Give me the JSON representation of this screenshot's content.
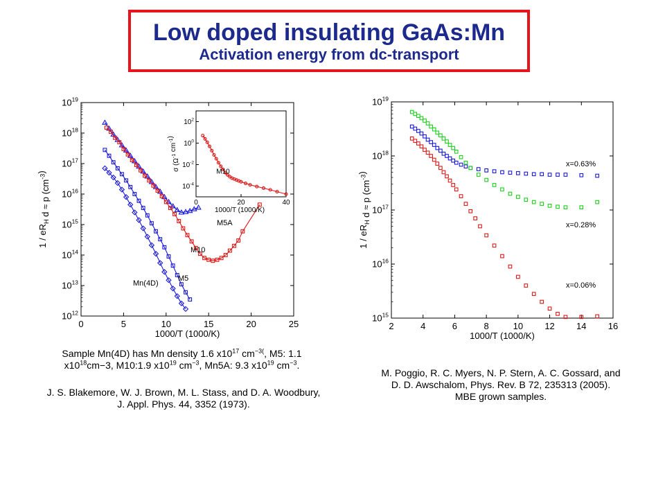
{
  "slide": {
    "title": "Low doped insulating GaAs:Mn",
    "subtitle": "Activation energy from dc-transport"
  },
  "captions": {
    "left_density": {
      "p1": "Sample Mn(4D) has Mn density 1.6 x10",
      "e1": "17",
      "p2": " cm",
      "e2": "−3(",
      "p3": ", M5: 1.1 x10",
      "e3": "18",
      "p4": "cm−3, M10:1.9 x10",
      "e4": "19",
      "p5": " cm",
      "e5": "−3",
      "p6": ", Mn5A: 9.3 x10",
      "e6": "19",
      "p7": " cm",
      "e7": "−3",
      "p8": "."
    },
    "left_ref": "J. S. Blakemore, W. J. Brown, M. L. Stass, and D. A. Woodbury, J. Appl. Phys. 44, 3352 (1973).",
    "right_ref": "M. Poggio, R. C. Myers, N. P. Stern, A. C. Gossard, and D. D. Awschalom, Phys. Rev. B 72, 235313 (2005). MBE grown samples."
  },
  "chart_data": [
    {
      "type": "line",
      "xlabel": "1000/T    (1000/K)",
      "ylabel": "1 / eR_H d ≈ p    (cm^-3)",
      "xlim": [
        0,
        25
      ],
      "ylim": [
        1000000000000.0,
        1e+19
      ],
      "yscale": "log",
      "xticks": [
        "0",
        "5",
        "10",
        "15",
        "20",
        "25"
      ],
      "yticks": [
        "10^12",
        "10^13",
        "10^14",
        "10^15",
        "10^16",
        "10^17",
        "10^18",
        "10^19"
      ],
      "series": [
        {
          "name": "M5A",
          "color": "#1a1adc",
          "marker": "triangle",
          "x": [
            2.8,
            3.3,
            3.8,
            4.3,
            4.8,
            5.3,
            5.8,
            6.3,
            6.8,
            7.3,
            7.8,
            8.3,
            8.8,
            9.3,
            9.8,
            10.3,
            10.8,
            11.3,
            11.8,
            12.3,
            12.8,
            13.3,
            13.8
          ],
          "y": [
            2.2e+18,
            1.4e+18,
            9e+17,
            6e+17,
            4e+17,
            2.7e+17,
            1.8e+17,
            1.2e+17,
            8e+16,
            5.5e+16,
            3.8e+16,
            2.5e+16,
            1.7e+16,
            1.2e+16,
            8000000000000000.0,
            5500000000000000.0,
            4000000000000000.0,
            3000000000000000.0,
            2500000000000000.0,
            2600000000000000.0,
            2800000000000000.0,
            3200000000000000.0,
            3600000000000000.0
          ]
        },
        {
          "name": "M10",
          "color": "#e01818",
          "marker": "square",
          "x": [
            3.0,
            3.5,
            4.0,
            4.5,
            5.0,
            5.5,
            6.0,
            6.5,
            7.0,
            7.5,
            8.0,
            8.5,
            9.0,
            9.5,
            10.0,
            10.5,
            11.0,
            11.5,
            12.0,
            12.5,
            13.0,
            13.5,
            14.0,
            14.5,
            15.0,
            15.5,
            16.0,
            16.5,
            17.0,
            17.5,
            18.0,
            18.5,
            19.0,
            21.0
          ],
          "y": [
            1.5e+18,
            1.1e+18,
            7e+17,
            5e+17,
            3e+17,
            2e+17,
            1.3e+17,
            9e+16,
            6e+16,
            4e+16,
            2.8e+16,
            1.9e+16,
            1.3e+16,
            8500000000000000.0,
            5500000000000000.0,
            3500000000000000.0,
            2200000000000000.0,
            1300000000000000.0,
            750000000000000.0,
            450000000000000.0,
            280000000000000.0,
            170000000000000.0,
            110000000000000.0,
            80000000000000.0,
            70000000000000.0,
            65000000000000.0,
            70000000000000.0,
            80000000000000.0,
            100000000000000.0,
            140000000000000.0,
            200000000000000.0,
            300000000000000.0,
            600000000000000.0,
            4500000000000000.0
          ]
        },
        {
          "name": "M5",
          "color": "#1a1adc",
          "marker": "square",
          "x": [
            2.8,
            3.3,
            3.8,
            4.3,
            4.8,
            5.3,
            5.8,
            6.3,
            6.8,
            7.3,
            7.8,
            8.3,
            8.8,
            9.3,
            9.8,
            10.3,
            10.8,
            11.3,
            11.8,
            12.3,
            12.8
          ],
          "y": [
            2.8e+17,
            1.8e+17,
            1.1e+17,
            7e+16,
            4.5e+16,
            2.8e+16,
            1.7e+16,
            1e+16,
            6000000000000000.0,
            3500000000000000.0,
            2000000000000000.0,
            1100000000000000.0,
            600000000000000.0,
            330000000000000.0,
            180000000000000.0,
            90000000000000.0,
            45000000000000.0,
            22000000000000.0,
            11000000000000.0,
            6000000000000.0,
            3500000000000.0
          ]
        },
        {
          "name": "Mn(4D)",
          "color": "#1a1adc",
          "marker": "diamond",
          "x": [
            2.8,
            3.3,
            3.8,
            4.3,
            4.8,
            5.3,
            5.8,
            6.3,
            6.8,
            7.3,
            7.8,
            8.3,
            8.8,
            9.3,
            9.8,
            10.3,
            10.8,
            11.3,
            11.8,
            12.3
          ],
          "y": [
            7e+16,
            5e+16,
            3.5e+16,
            2.3e+16,
            1.4e+16,
            8000000000000000.0,
            4500000000000000.0,
            2500000000000000.0,
            1400000000000000.0,
            750000000000000.0,
            400000000000000.0,
            210000000000000.0,
            110000000000000.0,
            55000000000000.0,
            28000000000000.0,
            15000000000000.0,
            8000000000000.0,
            4500000000000.0,
            2600000000000.0,
            1700000000000.0
          ]
        }
      ],
      "inset": {
        "type": "line",
        "xlabel": "1000/T    (1000/K)",
        "ylabel": "σ (Ω^-1 cm^-1)",
        "xlim": [
          0,
          40
        ],
        "ylim": [
          1e-05,
          1000.0
        ],
        "yscale": "log",
        "xticks": [
          "0",
          "20",
          "40"
        ],
        "yticks": [
          "10^-4",
          "10^-2",
          "10^0",
          "10^2"
        ],
        "series": [
          {
            "name": "M10",
            "color": "#e01818",
            "marker": "circle",
            "x": [
              3,
              4,
              5,
              6,
              7,
              8,
              9,
              10,
              11,
              12,
              13,
              14,
              15,
              16,
              17,
              18,
              19,
              20,
              22,
              24,
              27,
              30,
              33,
              36,
              40
            ],
            "y": [
              5,
              2.5,
              1.2,
              0.5,
              0.2,
              0.08,
              0.035,
              0.015,
              0.007,
              0.0035,
              0.0018,
              0.0011,
              0.00075,
              0.00055,
              0.00045,
              0.00037,
              0.0003,
              0.00025,
              0.00018,
              0.00013,
              9e-05,
              6.5e-05,
              4.5e-05,
              3e-05,
              1.8e-05
            ]
          }
        ]
      }
    },
    {
      "type": "scatter",
      "xlabel": "1000/T    (1000/K)",
      "ylabel": "1 / eR_H d ≈ p    (cm^-3)",
      "xlim": [
        2,
        16
      ],
      "ylim": [
        1000000000000000.0,
        1e+19
      ],
      "yscale": "log",
      "xticks": [
        "2",
        "4",
        "6",
        "8",
        "10",
        "12",
        "14",
        "16"
      ],
      "yticks": [
        "10^15",
        "10^16",
        "10^17",
        "10^18",
        "10^19"
      ],
      "series": [
        {
          "name": "x=0.63%",
          "color": "#1a1adc",
          "marker": "square",
          "x": [
            3.3,
            3.5,
            3.7,
            3.9,
            4.1,
            4.3,
            4.5,
            4.7,
            4.9,
            5.1,
            5.3,
            5.5,
            5.7,
            5.9,
            6.1,
            6.4,
            6.7,
            7.0,
            7.5,
            8.0,
            8.5,
            9.0,
            9.5,
            10.0,
            10.5,
            11.0,
            11.5,
            12.0,
            12.5,
            13.0,
            14.0,
            15.0
          ],
          "y": [
            3.5e+18,
            3.2e+18,
            2.9e+18,
            2.6e+18,
            2.3e+18,
            2e+18,
            1.8e+18,
            1.6e+18,
            1.4e+18,
            1.25e+18,
            1.1e+18,
            1e+18,
            9e+17,
            8.2e+17,
            7.5e+17,
            6.9e+17,
            6.4e+17,
            6e+17,
            5.7e+17,
            5.4e+17,
            5.2e+17,
            5e+17,
            4.9e+17,
            4.8e+17,
            4.7e+17,
            4.6e+17,
            4.6e+17,
            4.5e+17,
            4.5e+17,
            4.5e+17,
            4.4e+17,
            4.3e+17
          ]
        },
        {
          "name": "x=0.28%",
          "color": "#1ad21a",
          "marker": "square",
          "x": [
            3.3,
            3.5,
            3.7,
            3.9,
            4.1,
            4.3,
            4.5,
            4.7,
            4.9,
            5.1,
            5.3,
            5.5,
            5.7,
            5.9,
            6.1,
            6.4,
            6.7,
            7.0,
            7.5,
            8.0,
            8.5,
            9.0,
            9.5,
            10.0,
            10.5,
            11.0,
            11.5,
            12.0,
            12.5,
            13.0,
            14.0,
            15.0
          ],
          "y": [
            6.5e+18,
            6e+18,
            5.5e+18,
            5e+18,
            4.5e+18,
            4e+18,
            3.5e+18,
            3.1e+18,
            2.7e+18,
            2.4e+18,
            2.1e+18,
            1.85e+18,
            1.6e+18,
            1.4e+18,
            1.2e+18,
            9.5e+17,
            7.5e+17,
            6e+17,
            4.5e+17,
            3.6e+17,
            2.9e+17,
            2.4e+17,
            2e+17,
            1.75e+17,
            1.55e+17,
            1.4e+17,
            1.3e+17,
            1.2e+17,
            1.15e+17,
            1.12e+17,
            1.12e+17,
            1.4e+17
          ]
        },
        {
          "name": "x=0.06%",
          "color": "#e01818",
          "marker": "square",
          "x": [
            3.3,
            3.5,
            3.7,
            3.9,
            4.1,
            4.3,
            4.5,
            4.7,
            4.9,
            5.1,
            5.3,
            5.5,
            5.7,
            5.9,
            6.1,
            6.4,
            6.7,
            7.0,
            7.3,
            7.6,
            8.0,
            8.5,
            9.0,
            9.5,
            10.0,
            10.5,
            11.0,
            11.5,
            12.0,
            12.5,
            13.0,
            14.0,
            15.0
          ],
          "y": [
            2.1e+18,
            1.9e+18,
            1.7e+18,
            1.5e+18,
            1.3e+18,
            1.15e+18,
            1e+18,
            8.5e+17,
            7.2e+17,
            6e+17,
            5e+17,
            4.2e+17,
            3.5e+17,
            2.9e+17,
            2.4e+17,
            1.8e+17,
            1.3e+17,
            9.5e+16,
            7e+16,
            5e+16,
            3.4e+16,
            2.2e+16,
            1.4e+16,
            9000000000000000.0,
            5800000000000000.0,
            4000000000000000.0,
            2800000000000000.0,
            2000000000000000.0,
            1500000000000000.0,
            1200000000000000.0,
            1050000000000000.0,
            1050000000000000.0,
            1080000000000000.0
          ]
        }
      ]
    }
  ]
}
